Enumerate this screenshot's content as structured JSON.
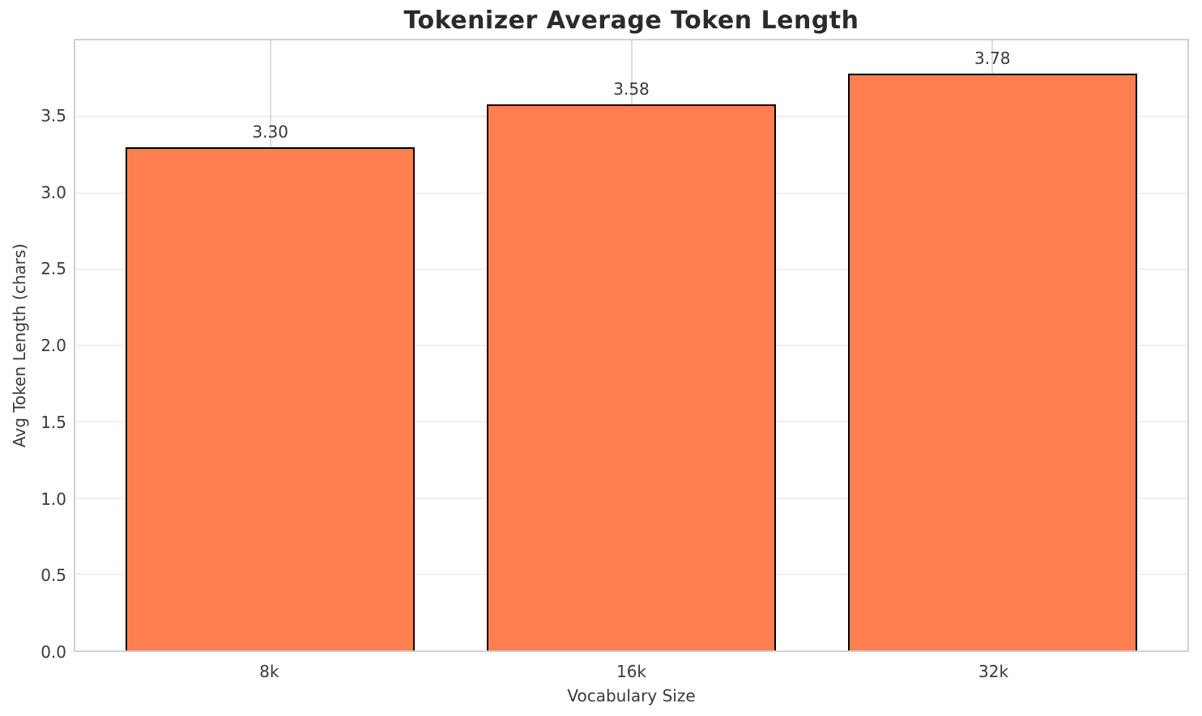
{
  "chart_data": {
    "type": "bar",
    "title": "Tokenizer Average Token Length",
    "xlabel": "Vocabulary Size",
    "ylabel": "Avg Token Length (chars)",
    "categories": [
      "8k",
      "16k",
      "32k"
    ],
    "values": [
      3.3,
      3.58,
      3.78
    ],
    "value_labels": [
      "3.30",
      "3.58",
      "3.78"
    ],
    "ylim": [
      0,
      4.0
    ],
    "yticks": [
      0.0,
      0.5,
      1.0,
      1.5,
      2.0,
      2.5,
      3.0,
      3.5
    ],
    "ytick_labels": [
      "0.0",
      "0.5",
      "1.0",
      "1.5",
      "2.0",
      "2.5",
      "3.0",
      "3.5"
    ],
    "grid": true,
    "legend": "none",
    "colors": {
      "bar_fill": "#ff7f50",
      "bar_edge": "#000000",
      "grid_horizontal": "#efefef",
      "grid_vertical": "#dcdcdc",
      "spine": "#d2d2d2",
      "text": "#3a3a3a",
      "title_text": "#2b2b2b",
      "background": "#ffffff"
    }
  }
}
